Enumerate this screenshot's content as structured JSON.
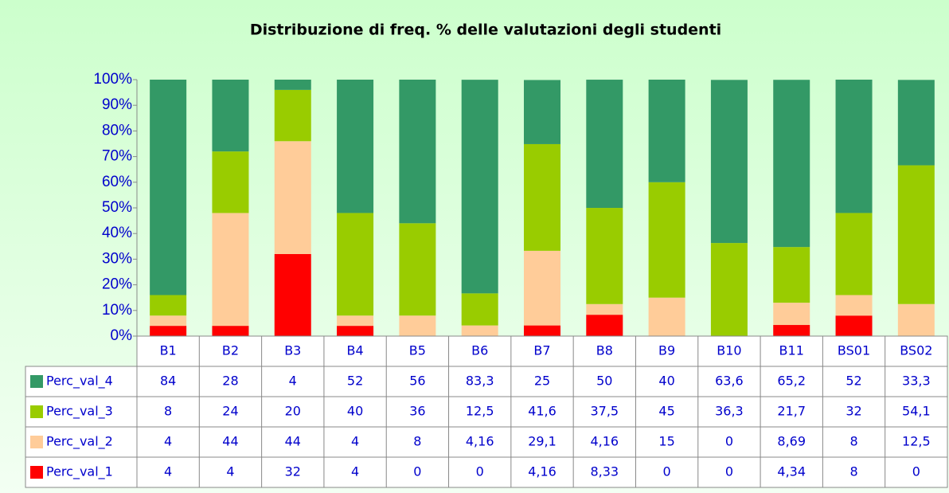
{
  "chart_data": {
    "type": "stacked_bar",
    "title": "Distribuzione di freq. % delle valutazioni degli studenti",
    "categories": [
      "B1",
      "B2",
      "B3",
      "B4",
      "B5",
      "B6",
      "B7",
      "B8",
      "B9",
      "B10",
      "B11",
      "BS01",
      "BS02"
    ],
    "series": [
      {
        "name": "Perc_val_4",
        "color": "#339966",
        "values": [
          84,
          28,
          4,
          52,
          56,
          83.3,
          25,
          50,
          40,
          63.6,
          65.2,
          52,
          33.3
        ],
        "value_labels": [
          "84",
          "28",
          "4",
          "52",
          "56",
          "83,3",
          "25",
          "50",
          "40",
          "63,6",
          "65,2",
          "52",
          "33,3"
        ]
      },
      {
        "name": "Perc_val_3",
        "color": "#99cc00",
        "values": [
          8,
          24,
          20,
          40,
          36,
          12.5,
          41.6,
          37.5,
          45,
          36.3,
          21.7,
          32,
          54.1
        ],
        "value_labels": [
          "8",
          "24",
          "20",
          "40",
          "36",
          "12,5",
          "41,6",
          "37,5",
          "45",
          "36,3",
          "21,7",
          "32",
          "54,1"
        ]
      },
      {
        "name": "Perc_val_2",
        "color": "#ffcc99",
        "values": [
          4,
          44,
          44,
          4,
          8,
          4.16,
          29.1,
          4.16,
          15,
          0,
          8.69,
          8,
          12.5
        ],
        "value_labels": [
          "4",
          "44",
          "44",
          "4",
          "8",
          "4,16",
          "29,1",
          "4,16",
          "15",
          "0",
          "8,69",
          "8",
          "12,5"
        ]
      },
      {
        "name": "Perc_val_1",
        "color": "#ff0000",
        "values": [
          4,
          4,
          32,
          4,
          0,
          0,
          4.16,
          8.33,
          0,
          0,
          4.34,
          8,
          0
        ],
        "value_labels": [
          "4",
          "4",
          "32",
          "4",
          "0",
          "0",
          "4,16",
          "8,33",
          "0",
          "0",
          "4,34",
          "8",
          "0"
        ]
      }
    ],
    "ylim": [
      0,
      100
    ],
    "yticks": [
      {
        "value": 0,
        "label": "0%"
      },
      {
        "value": 10,
        "label": "10%"
      },
      {
        "value": 20,
        "label": "20%"
      },
      {
        "value": 30,
        "label": "30%"
      },
      {
        "value": 40,
        "label": "40%"
      },
      {
        "value": 50,
        "label": "50%"
      },
      {
        "value": 60,
        "label": "60%"
      },
      {
        "value": 70,
        "label": "70%"
      },
      {
        "value": 80,
        "label": "80%"
      },
      {
        "value": 90,
        "label": "90%"
      },
      {
        "value": 100,
        "label": "100%"
      }
    ]
  }
}
